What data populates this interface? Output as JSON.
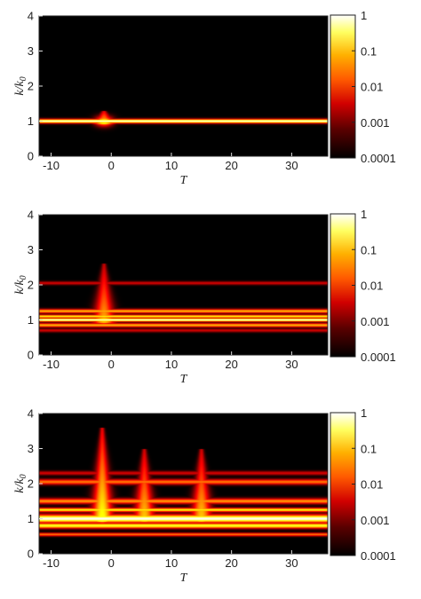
{
  "chart_data": [
    {
      "type": "heatmap",
      "title": "",
      "xlabel": "T",
      "ylabel": "k/k0",
      "xlim": [
        -12,
        36
      ],
      "ylim": [
        0,
        4
      ],
      "xticks": [
        -10,
        0,
        10,
        20,
        30
      ],
      "yticks": [
        0,
        1,
        2,
        3,
        4
      ],
      "colorbar": {
        "scale": "log",
        "ticks": [
          "1",
          "0.1",
          "0.01",
          "0.001",
          "0.0001"
        ],
        "colormap": "hot"
      },
      "features": {
        "bands": [
          {
            "k": 1.0,
            "width": 0.06,
            "intensity": 1.0
          }
        ],
        "spikes": [
          {
            "T": -1.2,
            "k_top": 1.3,
            "intensity": 0.8
          }
        ]
      }
    },
    {
      "type": "heatmap",
      "title": "",
      "xlabel": "T",
      "ylabel": "k/k0",
      "xlim": [
        -12,
        36
      ],
      "ylim": [
        0,
        4
      ],
      "xticks": [
        -10,
        0,
        10,
        20,
        30
      ],
      "yticks": [
        0,
        1,
        2,
        3,
        4
      ],
      "colorbar": {
        "scale": "log",
        "ticks": [
          "1",
          "0.1",
          "0.01",
          "0.001",
          "0.0001"
        ],
        "colormap": "hot"
      },
      "features": {
        "bands": [
          {
            "k": 2.05,
            "width": 0.05,
            "intensity": 0.35
          },
          {
            "k": 1.25,
            "width": 0.06,
            "intensity": 0.7
          },
          {
            "k": 1.1,
            "width": 0.05,
            "intensity": 0.8
          },
          {
            "k": 1.0,
            "width": 0.05,
            "intensity": 1.0
          },
          {
            "k": 0.85,
            "width": 0.06,
            "intensity": 0.7
          },
          {
            "k": 0.7,
            "width": 0.05,
            "intensity": 0.35
          }
        ],
        "spikes": [
          {
            "T": -1.2,
            "k_top": 2.6,
            "intensity": 0.7
          }
        ]
      }
    },
    {
      "type": "heatmap",
      "title": "",
      "xlabel": "T",
      "ylabel": "k/k0",
      "xlim": [
        -12,
        36
      ],
      "ylim": [
        0,
        4
      ],
      "xticks": [
        -10,
        0,
        10,
        20,
        30
      ],
      "yticks": [
        0,
        1,
        2,
        3,
        4
      ],
      "colorbar": {
        "scale": "log",
        "ticks": [
          "1",
          "0.1",
          "0.01",
          "0.001",
          "0.0001"
        ],
        "colormap": "hot"
      },
      "features": {
        "bands": [
          {
            "k": 2.3,
            "width": 0.06,
            "intensity": 0.35
          },
          {
            "k": 2.05,
            "width": 0.08,
            "intensity": 0.6
          },
          {
            "k": 1.5,
            "width": 0.08,
            "intensity": 0.65
          },
          {
            "k": 1.25,
            "width": 0.06,
            "intensity": 0.8
          },
          {
            "k": 1.0,
            "width": 0.12,
            "intensity": 1.0
          },
          {
            "k": 0.8,
            "width": 0.08,
            "intensity": 0.85
          },
          {
            "k": 0.55,
            "width": 0.05,
            "intensity": 0.6
          }
        ],
        "spikes": [
          {
            "T": -1.5,
            "k_top": 3.6,
            "intensity": 0.85
          },
          {
            "T": 5.5,
            "k_top": 3.0,
            "intensity": 0.75
          },
          {
            "T": 15.0,
            "k_top": 3.0,
            "intensity": 0.75
          }
        ]
      }
    }
  ]
}
